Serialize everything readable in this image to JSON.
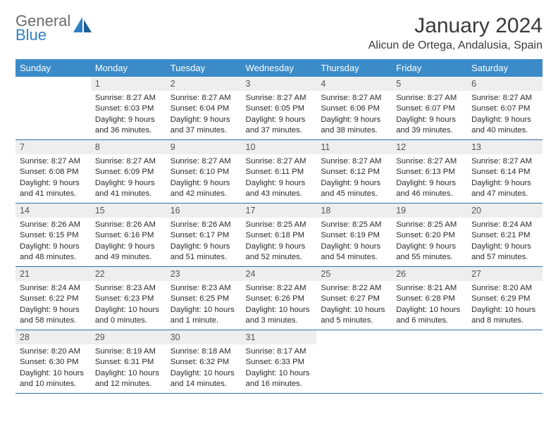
{
  "logo": {
    "line1": "General",
    "line2": "Blue"
  },
  "title": "January 2024",
  "location": "Alicun de Ortega, Andalusia, Spain",
  "colors": {
    "header_bg": "#3b8bc9",
    "header_text": "#ffffff",
    "daynum_bg": "#eeeeee",
    "border": "#2f6fa5",
    "logo_gray": "#6b6b6b",
    "logo_blue": "#2f7fc2"
  },
  "weekdays": [
    "Sunday",
    "Monday",
    "Tuesday",
    "Wednesday",
    "Thursday",
    "Friday",
    "Saturday"
  ],
  "weeks": [
    [
      null,
      {
        "n": "1",
        "sr": "8:27 AM",
        "ss": "6:03 PM",
        "dl": "9 hours and 36 minutes."
      },
      {
        "n": "2",
        "sr": "8:27 AM",
        "ss": "6:04 PM",
        "dl": "9 hours and 37 minutes."
      },
      {
        "n": "3",
        "sr": "8:27 AM",
        "ss": "6:05 PM",
        "dl": "9 hours and 37 minutes."
      },
      {
        "n": "4",
        "sr": "8:27 AM",
        "ss": "6:06 PM",
        "dl": "9 hours and 38 minutes."
      },
      {
        "n": "5",
        "sr": "8:27 AM",
        "ss": "6:07 PM",
        "dl": "9 hours and 39 minutes."
      },
      {
        "n": "6",
        "sr": "8:27 AM",
        "ss": "6:07 PM",
        "dl": "9 hours and 40 minutes."
      }
    ],
    [
      {
        "n": "7",
        "sr": "8:27 AM",
        "ss": "6:08 PM",
        "dl": "9 hours and 41 minutes."
      },
      {
        "n": "8",
        "sr": "8:27 AM",
        "ss": "6:09 PM",
        "dl": "9 hours and 41 minutes."
      },
      {
        "n": "9",
        "sr": "8:27 AM",
        "ss": "6:10 PM",
        "dl": "9 hours and 42 minutes."
      },
      {
        "n": "10",
        "sr": "8:27 AM",
        "ss": "6:11 PM",
        "dl": "9 hours and 43 minutes."
      },
      {
        "n": "11",
        "sr": "8:27 AM",
        "ss": "6:12 PM",
        "dl": "9 hours and 45 minutes."
      },
      {
        "n": "12",
        "sr": "8:27 AM",
        "ss": "6:13 PM",
        "dl": "9 hours and 46 minutes."
      },
      {
        "n": "13",
        "sr": "8:27 AM",
        "ss": "6:14 PM",
        "dl": "9 hours and 47 minutes."
      }
    ],
    [
      {
        "n": "14",
        "sr": "8:26 AM",
        "ss": "6:15 PM",
        "dl": "9 hours and 48 minutes."
      },
      {
        "n": "15",
        "sr": "8:26 AM",
        "ss": "6:16 PM",
        "dl": "9 hours and 49 minutes."
      },
      {
        "n": "16",
        "sr": "8:26 AM",
        "ss": "6:17 PM",
        "dl": "9 hours and 51 minutes."
      },
      {
        "n": "17",
        "sr": "8:25 AM",
        "ss": "6:18 PM",
        "dl": "9 hours and 52 minutes."
      },
      {
        "n": "18",
        "sr": "8:25 AM",
        "ss": "6:19 PM",
        "dl": "9 hours and 54 minutes."
      },
      {
        "n": "19",
        "sr": "8:25 AM",
        "ss": "6:20 PM",
        "dl": "9 hours and 55 minutes."
      },
      {
        "n": "20",
        "sr": "8:24 AM",
        "ss": "6:21 PM",
        "dl": "9 hours and 57 minutes."
      }
    ],
    [
      {
        "n": "21",
        "sr": "8:24 AM",
        "ss": "6:22 PM",
        "dl": "9 hours and 58 minutes."
      },
      {
        "n": "22",
        "sr": "8:23 AM",
        "ss": "6:23 PM",
        "dl": "10 hours and 0 minutes."
      },
      {
        "n": "23",
        "sr": "8:23 AM",
        "ss": "6:25 PM",
        "dl": "10 hours and 1 minute."
      },
      {
        "n": "24",
        "sr": "8:22 AM",
        "ss": "6:26 PM",
        "dl": "10 hours and 3 minutes."
      },
      {
        "n": "25",
        "sr": "8:22 AM",
        "ss": "6:27 PM",
        "dl": "10 hours and 5 minutes."
      },
      {
        "n": "26",
        "sr": "8:21 AM",
        "ss": "6:28 PM",
        "dl": "10 hours and 6 minutes."
      },
      {
        "n": "27",
        "sr": "8:20 AM",
        "ss": "6:29 PM",
        "dl": "10 hours and 8 minutes."
      }
    ],
    [
      {
        "n": "28",
        "sr": "8:20 AM",
        "ss": "6:30 PM",
        "dl": "10 hours and 10 minutes."
      },
      {
        "n": "29",
        "sr": "8:19 AM",
        "ss": "6:31 PM",
        "dl": "10 hours and 12 minutes."
      },
      {
        "n": "30",
        "sr": "8:18 AM",
        "ss": "6:32 PM",
        "dl": "10 hours and 14 minutes."
      },
      {
        "n": "31",
        "sr": "8:17 AM",
        "ss": "6:33 PM",
        "dl": "10 hours and 16 minutes."
      },
      null,
      null,
      null
    ]
  ],
  "labels": {
    "sunrise": "Sunrise:",
    "sunset": "Sunset:",
    "daylight": "Daylight:"
  }
}
